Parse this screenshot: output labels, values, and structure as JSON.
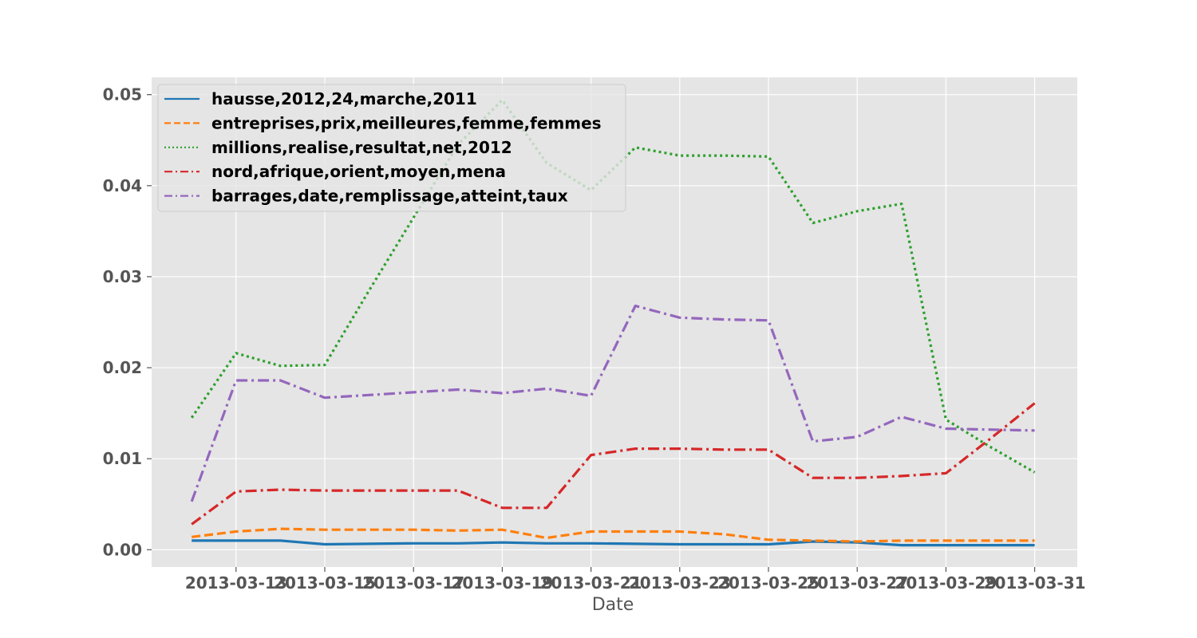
{
  "chart_data": {
    "type": "line",
    "title": "",
    "xlabel": "Date",
    "ylabel": "",
    "ylim": [
      -0.0019,
      0.0519
    ],
    "yticks": [
      "0.00",
      "0.01",
      "0.02",
      "0.03",
      "0.04",
      "0.05"
    ],
    "xticks": [
      "2013-03-13",
      "2013-03-15",
      "2013-03-17",
      "2013-03-19",
      "2013-03-21",
      "2013-03-23",
      "2013-03-25",
      "2013-03-27",
      "2013-03-29",
      "2013-03-31"
    ],
    "x": [
      "2013-03-12",
      "2013-03-13",
      "2013-03-14",
      "2013-03-15",
      "2013-03-16",
      "2013-03-17",
      "2013-03-18",
      "2013-03-19",
      "2013-03-20",
      "2013-03-21",
      "2013-03-22",
      "2013-03-23",
      "2013-03-24",
      "2013-03-25",
      "2013-03-26",
      "2013-03-27",
      "2013-03-28",
      "2013-03-29",
      "2013-03-30",
      "2013-03-31"
    ],
    "grid": true,
    "legend_position": "top-left",
    "series": [
      {
        "name": "hausse,2012,24,marche,2011",
        "color": "#1f77b4",
        "dash": "solid",
        "values": [
          0.001,
          0.001,
          0.001,
          0.0006,
          0.00065,
          0.0007,
          0.0007,
          0.0008,
          0.0007,
          0.0007,
          0.00065,
          0.0006,
          0.0006,
          0.0006,
          0.0009,
          0.0008,
          0.0005,
          0.0005,
          0.0005,
          0.0005
        ]
      },
      {
        "name": "entreprises,prix,meilleures,femme,femmes",
        "color": "#ff7f0e",
        "dash": "dashed",
        "values": [
          0.0014,
          0.002,
          0.0023,
          0.0022,
          0.0022,
          0.0022,
          0.0021,
          0.0022,
          0.0013,
          0.002,
          0.002,
          0.002,
          0.0017,
          0.0011,
          0.001,
          0.0009,
          0.001,
          0.001,
          0.001,
          0.001
        ]
      },
      {
        "name": "millions,realise,resultat,net,2012",
        "color": "#2ca02c",
        "dash": "dotted",
        "values": [
          0.0145,
          0.0216,
          0.0202,
          0.0203,
          0.0285,
          0.0365,
          0.0445,
          0.0494,
          0.0425,
          0.0395,
          0.0442,
          0.0433,
          0.0433,
          0.0432,
          0.0359,
          0.0372,
          0.038,
          0.0143,
          0.0113,
          0.0085
        ]
      },
      {
        "name": "nord,afrique,orient,moyen,mena",
        "color": "#d62728",
        "dash": "dashdot",
        "values": [
          0.0028,
          0.0064,
          0.0066,
          0.0065,
          0.0065,
          0.0065,
          0.0065,
          0.0046,
          0.0046,
          0.0104,
          0.0111,
          0.0111,
          0.011,
          0.011,
          0.0079,
          0.0079,
          0.0081,
          0.0084,
          0.0122,
          0.0161
        ]
      },
      {
        "name": "barrages,date,remplissage,atteint,taux",
        "color": "#9467bd",
        "dash": "dashdot",
        "values": [
          0.0053,
          0.0186,
          0.0186,
          0.0167,
          0.017,
          0.0173,
          0.0176,
          0.0172,
          0.0177,
          0.0169,
          0.0268,
          0.0255,
          0.0253,
          0.0252,
          0.0119,
          0.0124,
          0.0146,
          0.0133,
          0.0132,
          0.0131
        ]
      }
    ]
  }
}
